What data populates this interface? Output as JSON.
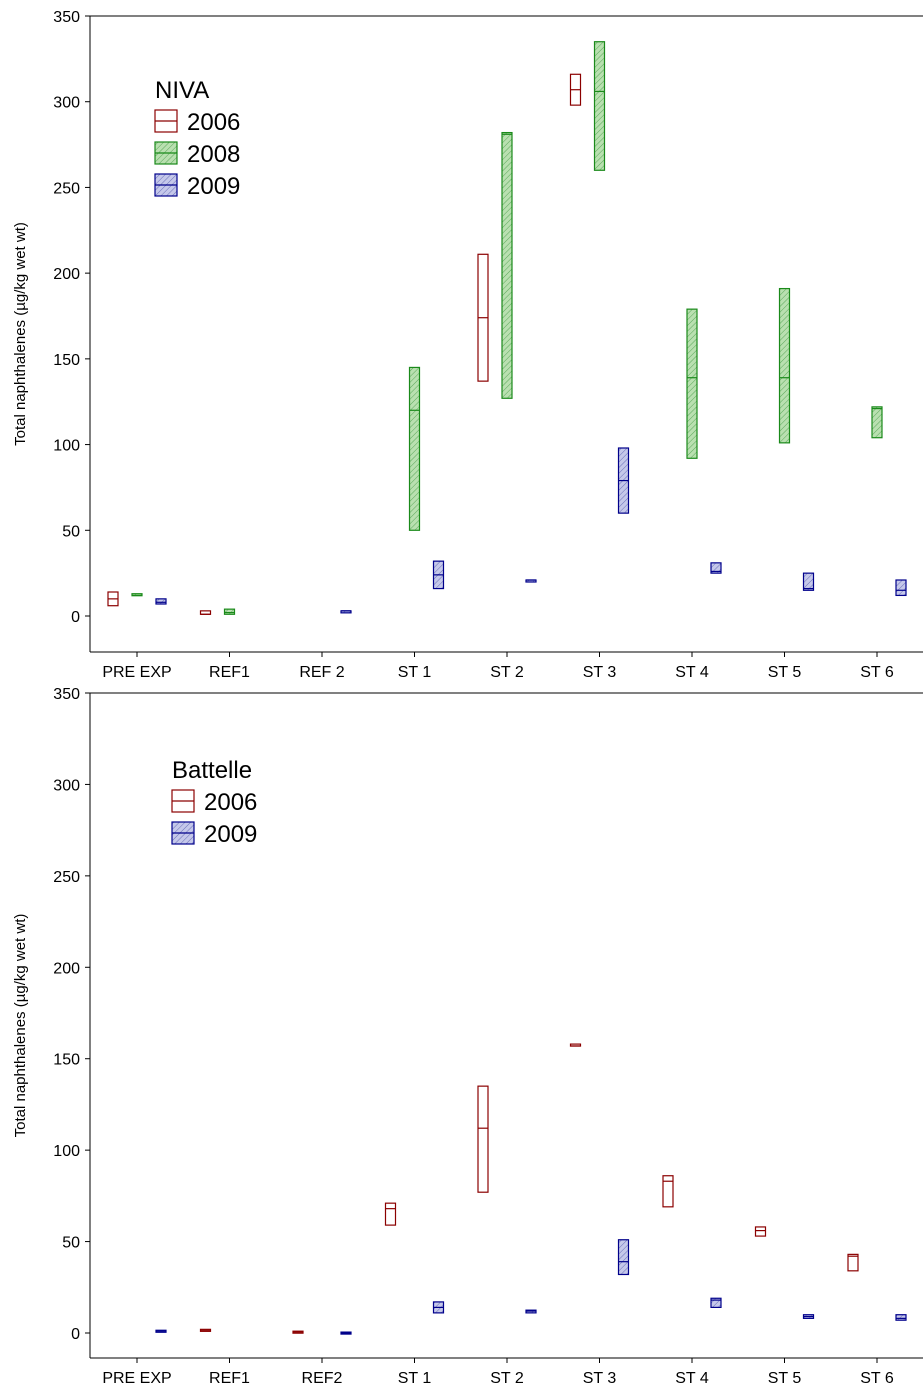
{
  "chart_data": [
    {
      "type": "box",
      "legend_title": "NIVA",
      "ylabel": "Total naphthalenes (µg/kg wet wt)",
      "ylim": [
        0,
        350
      ],
      "yticks": [
        "0",
        "50",
        "100",
        "150",
        "200",
        "250",
        "300",
        "350"
      ],
      "categories": [
        "PRE EXP",
        "REF1",
        "REF 2",
        "ST 1",
        "ST 2",
        "ST 3",
        "ST 4",
        "ST 5",
        "ST 6"
      ],
      "legend_position": "top-left",
      "series": [
        {
          "name": "2006",
          "color": "#8B0000",
          "fill": "none",
          "boxes": [
            {
              "cat": 0,
              "low": 6,
              "median": 10,
              "high": 14
            },
            {
              "cat": 1,
              "low": 1,
              "median": 1,
              "high": 3
            },
            {
              "cat": 4,
              "low": 137,
              "median": 174,
              "high": 211
            },
            {
              "cat": 5,
              "low": 298,
              "median": 307,
              "high": 316
            }
          ]
        },
        {
          "name": "2008",
          "color": "#1a8a1a",
          "fill": "#b9e0b0",
          "boxes": [
            {
              "cat": 0,
              "low": 12,
              "median": 12,
              "high": 13
            },
            {
              "cat": 1,
              "low": 1,
              "median": 2,
              "high": 4
            },
            {
              "cat": 3,
              "low": 50,
              "median": 120,
              "high": 145
            },
            {
              "cat": 4,
              "low": 127,
              "median": 281,
              "high": 282
            },
            {
              "cat": 5,
              "low": 260,
              "median": 306,
              "high": 335
            },
            {
              "cat": 6,
              "low": 92,
              "median": 139,
              "high": 179
            },
            {
              "cat": 7,
              "low": 101,
              "median": 139,
              "high": 191
            },
            {
              "cat": 8,
              "low": 104,
              "median": 121,
              "high": 122
            }
          ]
        },
        {
          "name": "2009",
          "color": "#00008B",
          "fill": "#c5c8ea",
          "boxes": [
            {
              "cat": 0,
              "low": 7,
              "median": 8,
              "high": 10
            },
            {
              "cat": 2,
              "low": 2,
              "median": 3,
              "high": 3
            },
            {
              "cat": 3,
              "low": 16,
              "median": 24,
              "high": 32
            },
            {
              "cat": 4,
              "low": 20,
              "median": 21,
              "high": 21
            },
            {
              "cat": 5,
              "low": 60,
              "median": 79,
              "high": 98
            },
            {
              "cat": 6,
              "low": 25,
              "median": 26,
              "high": 31
            },
            {
              "cat": 7,
              "low": 15,
              "median": 16,
              "high": 25
            },
            {
              "cat": 8,
              "low": 12,
              "median": 15,
              "high": 21
            }
          ]
        }
      ]
    },
    {
      "type": "box",
      "legend_title": "Battelle",
      "ylabel": "Total naphthalenes (µg/kg wet wt)",
      "ylim": [
        0,
        350
      ],
      "yticks": [
        "0",
        "50",
        "100",
        "150",
        "200",
        "250",
        "300",
        "350"
      ],
      "categories": [
        "PRE EXP",
        "REF1",
        "REF2",
        "ST 1",
        "ST 2",
        "ST 3",
        "ST 4",
        "ST 5",
        "ST 6"
      ],
      "legend_position": "top-left",
      "series": [
        {
          "name": "2006",
          "color": "#8B0000",
          "fill": "none",
          "boxes": [
            {
              "cat": 1,
              "low": 1,
              "median": 1.5,
              "high": 2
            },
            {
              "cat": 2,
              "low": 0,
              "median": 0.5,
              "high": 1
            },
            {
              "cat": 3,
              "low": 59,
              "median": 68,
              "high": 71
            },
            {
              "cat": 4,
              "low": 77,
              "median": 112,
              "high": 135
            },
            {
              "cat": 5,
              "low": 157,
              "median": 157,
              "high": 158
            },
            {
              "cat": 6,
              "low": 69,
              "median": 83,
              "high": 86
            },
            {
              "cat": 7,
              "low": 53,
              "median": 56,
              "high": 58
            },
            {
              "cat": 8,
              "low": 34,
              "median": 42,
              "high": 43
            }
          ]
        },
        {
          "name": "2009",
          "color": "#00008B",
          "fill": "#c5c8ea",
          "boxes": [
            {
              "cat": 0,
              "low": 0.5,
              "median": 1,
              "high": 1.5
            },
            {
              "cat": 2,
              "low": 0,
              "median": 0,
              "high": 0.5
            },
            {
              "cat": 3,
              "low": 11,
              "median": 14,
              "high": 17
            },
            {
              "cat": 4,
              "low": 11,
              "median": 12,
              "high": 12.5
            },
            {
              "cat": 5,
              "low": 32,
              "median": 39,
              "high": 51
            },
            {
              "cat": 6,
              "low": 14,
              "median": 18,
              "high": 19
            },
            {
              "cat": 7,
              "low": 8,
              "median": 9,
              "high": 10
            },
            {
              "cat": 8,
              "low": 7,
              "median": 8,
              "high": 10
            }
          ]
        }
      ]
    }
  ]
}
